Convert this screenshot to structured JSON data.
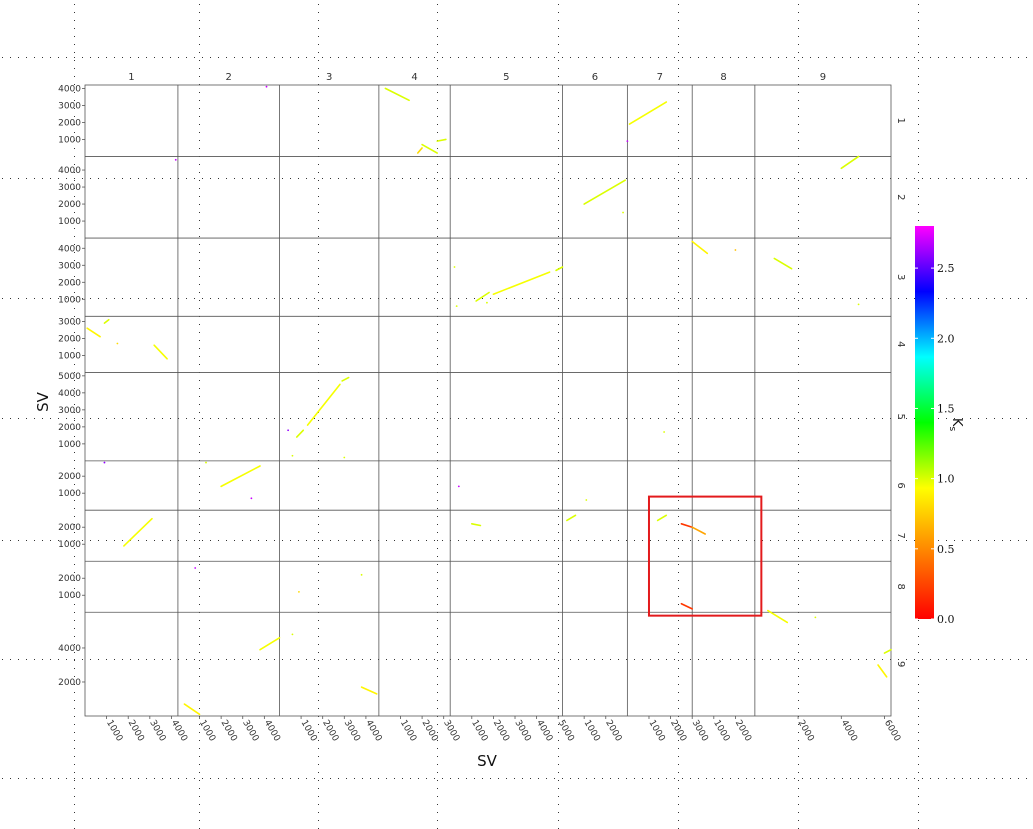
{
  "chart_data": {
    "type": "scatter",
    "subtype": "dot-plot",
    "xlabel": "SV",
    "ylabel": "SV",
    "columns": [
      {
        "name": "1",
        "len": 4300,
        "ticks": [
          1000,
          2000,
          3000,
          4000
        ]
      },
      {
        "name": "2",
        "len": 4700,
        "ticks": [
          1000,
          2000,
          3000,
          4000
        ]
      },
      {
        "name": "3",
        "len": 4600,
        "ticks": [
          1000,
          2000,
          3000,
          4000
        ]
      },
      {
        "name": "4",
        "len": 3300,
        "ticks": [
          1000,
          2000,
          3000
        ]
      },
      {
        "name": "5",
        "len": 5200,
        "ticks": [
          1000,
          2000,
          3000,
          4000,
          5000
        ]
      },
      {
        "name": "6",
        "len": 3000,
        "ticks": [
          1000,
          2000
        ]
      },
      {
        "name": "7",
        "len": 3000,
        "ticks": [
          1000,
          2000,
          3000
        ]
      },
      {
        "name": "8",
        "len": 2900,
        "ticks": [
          1000,
          2000
        ]
      },
      {
        "name": "9",
        "len": 6300,
        "ticks": [
          2000,
          4000,
          6000
        ]
      }
    ],
    "rows": [
      {
        "name": "1",
        "len": 4200,
        "ticks": [
          1000,
          2000,
          3000,
          4000
        ]
      },
      {
        "name": "2",
        "len": 4800,
        "ticks": [
          1000,
          2000,
          3000,
          4000
        ]
      },
      {
        "name": "3",
        "len": 4600,
        "ticks": [
          1000,
          2000,
          3000,
          4000
        ]
      },
      {
        "name": "4",
        "len": 3300,
        "ticks": [
          1000,
          2000,
          3000
        ]
      },
      {
        "name": "5",
        "len": 5200,
        "ticks": [
          1000,
          2000,
          3000,
          4000,
          5000
        ]
      },
      {
        "name": "6",
        "len": 2900,
        "ticks": [
          1000,
          2000
        ]
      },
      {
        "name": "7",
        "len": 3000,
        "ticks": [
          1000,
          2000,
          3000
        ]
      },
      {
        "name": "8",
        "len": 3000,
        "ticks": [
          1000,
          2000
        ]
      },
      {
        "name": "9",
        "len": 6100,
        "ticks": [
          2000,
          4000,
          6000
        ]
      }
    ],
    "legend": {
      "title": "K",
      "title_sub": "s",
      "min": 0.0,
      "max": 2.8,
      "ticks": [
        "0.0",
        "0.5",
        "1.0",
        "1.5",
        "2.0",
        "2.5"
      ],
      "colors": [
        "#ff0000",
        "#ff8000",
        "#ffff00",
        "#00ff00",
        "#00ffff",
        "#0000ff",
        "#ff00ff"
      ]
    },
    "highlight": {
      "color": "#e31a1c",
      "x_range": [
        "7",
        1000,
        "9",
        300
      ],
      "y_range": [
        "6",
        800,
        "9",
        5900
      ]
    },
    "segments": [
      {
        "col": "4",
        "row": "1",
        "x1": 300,
        "y1": 4000,
        "x2": 1400,
        "y2": 3300,
        "ks": 1.0
      },
      {
        "col": "4",
        "row": "1",
        "x1": 2000,
        "y1": 700,
        "x2": 2700,
        "y2": 200,
        "ks": 1.0
      },
      {
        "col": "4",
        "row": "1",
        "x1": 1800,
        "y1": 200,
        "x2": 2000,
        "y2": 500,
        "ks": 0.8
      },
      {
        "col": "4",
        "row": "1",
        "x1": 2700,
        "y1": 900,
        "x2": 3100,
        "y2": 1000,
        "ks": 1.0
      },
      {
        "col": "7",
        "row": "1",
        "x1": 100,
        "y1": 1900,
        "x2": 1800,
        "y2": 3200,
        "ks": 0.95
      },
      {
        "col": "9",
        "row": "2",
        "x1": 4000,
        "y1": 4100,
        "x2": 4800,
        "y2": 4800,
        "ks": 1.0
      },
      {
        "col": "6",
        "row": "2",
        "x1": 1000,
        "y1": 2000,
        "x2": 2900,
        "y2": 3400,
        "ks": 1.0
      },
      {
        "col": "8",
        "row": "3",
        "x1": 0,
        "y1": 4400,
        "x2": 700,
        "y2": 3700,
        "ks": 0.9
      },
      {
        "col": "9",
        "row": "3",
        "x1": 900,
        "y1": 3400,
        "x2": 1700,
        "y2": 2800,
        "ks": 1.0
      },
      {
        "col": "5",
        "row": "3",
        "x1": 2000,
        "y1": 1300,
        "x2": 4600,
        "y2": 2600,
        "ks": 0.95
      },
      {
        "col": "5",
        "row": "3",
        "x1": 1200,
        "y1": 900,
        "x2": 1800,
        "y2": 1400,
        "ks": 1.0
      },
      {
        "col": "5",
        "row": "3",
        "x1": 4900,
        "y1": 2700,
        "x2": 5200,
        "y2": 2900,
        "ks": 1.0
      },
      {
        "col": "1",
        "row": "4",
        "x1": 100,
        "y1": 2600,
        "x2": 700,
        "y2": 2100,
        "ks": 0.9
      },
      {
        "col": "1",
        "row": "4",
        "x1": 900,
        "y1": 2900,
        "x2": 1100,
        "y2": 3100,
        "ks": 1.0
      },
      {
        "col": "1",
        "row": "4",
        "x1": 3200,
        "y1": 1600,
        "x2": 3800,
        "y2": 800,
        "ks": 0.95
      },
      {
        "col": "3",
        "row": "5",
        "x1": 1300,
        "y1": 2100,
        "x2": 2800,
        "y2": 4500,
        "ks": 0.95
      },
      {
        "col": "3",
        "row": "5",
        "x1": 2900,
        "y1": 4700,
        "x2": 3200,
        "y2": 4900,
        "ks": 1.0
      },
      {
        "col": "3",
        "row": "5",
        "x1": 800,
        "y1": 1400,
        "x2": 1100,
        "y2": 1800,
        "ks": 1.0
      },
      {
        "col": "2",
        "row": "6",
        "x1": 2000,
        "y1": 1400,
        "x2": 3800,
        "y2": 2600,
        "ks": 0.95
      },
      {
        "col": "1",
        "row": "7",
        "x1": 1800,
        "y1": 900,
        "x2": 3100,
        "y2": 2500,
        "ks": 0.95
      },
      {
        "col": "5",
        "row": "7",
        "x1": 1000,
        "y1": 2200,
        "x2": 1400,
        "y2": 2100,
        "ks": 1.0
      },
      {
        "col": "6",
        "row": "7",
        "x1": 200,
        "y1": 2400,
        "x2": 600,
        "y2": 2700,
        "ks": 1.0
      },
      {
        "col": "7",
        "row": "7",
        "x1": 1400,
        "y1": 2400,
        "x2": 1800,
        "y2": 2700,
        "ks": 1.0
      },
      {
        "col": "7",
        "row": "7",
        "x1": 2500,
        "y1": 2200,
        "x2": 3000,
        "y2": 2000,
        "ks": 0.2
      },
      {
        "col": "8",
        "row": "7",
        "x1": 0,
        "y1": 2000,
        "x2": 600,
        "y2": 1600,
        "ks": 0.6
      },
      {
        "col": "7",
        "row": "8",
        "x1": 2500,
        "y1": 500,
        "x2": 3000,
        "y2": 200,
        "ks": 0.2
      },
      {
        "col": "2",
        "row": "9",
        "x1": 300,
        "y1": 700,
        "x2": 1000,
        "y2": 100,
        "ks": 0.9
      },
      {
        "col": "2",
        "row": "9",
        "x1": 3800,
        "y1": 3900,
        "x2": 4700,
        "y2": 4600,
        "ks": 0.95
      },
      {
        "col": "3",
        "row": "9",
        "x1": 3800,
        "y1": 1700,
        "x2": 4500,
        "y2": 1300,
        "ks": 0.9
      },
      {
        "col": "9",
        "row": "9",
        "x1": 600,
        "y1": 6200,
        "x2": 1500,
        "y2": 5500,
        "ks": 0.95
      },
      {
        "col": "9",
        "row": "9",
        "x1": 5700,
        "y1": 3000,
        "x2": 6100,
        "y2": 2300,
        "ks": 0.9
      },
      {
        "col": "9",
        "row": "9",
        "x1": 6000,
        "y1": 3700,
        "x2": 6300,
        "y2": 3900,
        "ks": 1.0
      }
    ],
    "points": [
      {
        "col": "2",
        "row": "1",
        "x": 4100,
        "y": 4100,
        "ks": 2.7
      },
      {
        "col": "7",
        "row": "1",
        "x": 0,
        "y": 900,
        "ks": 2.7
      },
      {
        "col": "1",
        "row": "2",
        "x": 4200,
        "y": 4600,
        "ks": 2.7
      },
      {
        "col": "6",
        "row": "2",
        "x": 2800,
        "y": 1500,
        "ks": 1.0
      },
      {
        "col": "8",
        "row": "3",
        "x": 2000,
        "y": 3900,
        "ks": 0.7
      },
      {
        "col": "5",
        "row": "3",
        "x": 200,
        "y": 2900,
        "ks": 1.0
      },
      {
        "col": "5",
        "row": "3",
        "x": 300,
        "y": 600,
        "ks": 1.0
      },
      {
        "col": "9",
        "row": "3",
        "x": 4800,
        "y": 700,
        "ks": 1.0
      },
      {
        "col": "5",
        "row": "3",
        "x": 1700,
        "y": 800,
        "ks": 1.0
      },
      {
        "col": "1",
        "row": "4",
        "x": 1500,
        "y": 1700,
        "ks": 0.8
      },
      {
        "col": "3",
        "row": "5",
        "x": 400,
        "y": 1800,
        "ks": 2.6
      },
      {
        "col": "3",
        "row": "5",
        "x": 600,
        "y": 300,
        "ks": 1.0
      },
      {
        "col": "3",
        "row": "5",
        "x": 3000,
        "y": 200,
        "ks": 1.0
      },
      {
        "col": "7",
        "row": "5",
        "x": 1700,
        "y": 1700,
        "ks": 1.0
      },
      {
        "col": "1",
        "row": "6",
        "x": 900,
        "y": 2800,
        "ks": 2.6
      },
      {
        "col": "2",
        "row": "6",
        "x": 1300,
        "y": 2800,
        "ks": 1.0
      },
      {
        "col": "2",
        "row": "6",
        "x": 3400,
        "y": 700,
        "ks": 2.7
      },
      {
        "col": "5",
        "row": "6",
        "x": 400,
        "y": 1400,
        "ks": 2.7
      },
      {
        "col": "6",
        "row": "6",
        "x": 1100,
        "y": 600,
        "ks": 1.0
      },
      {
        "col": "2",
        "row": "8",
        "x": 800,
        "y": 2600,
        "ks": 2.7
      },
      {
        "col": "3",
        "row": "8",
        "x": 900,
        "y": 1200,
        "ks": 0.8
      },
      {
        "col": "3",
        "row": "8",
        "x": 3800,
        "y": 2200,
        "ks": 1.0
      },
      {
        "col": "3",
        "row": "9",
        "x": 600,
        "y": 4800,
        "ks": 1.0
      },
      {
        "col": "9",
        "row": "9",
        "x": 2800,
        "y": 5800,
        "ks": 1.0
      }
    ]
  }
}
